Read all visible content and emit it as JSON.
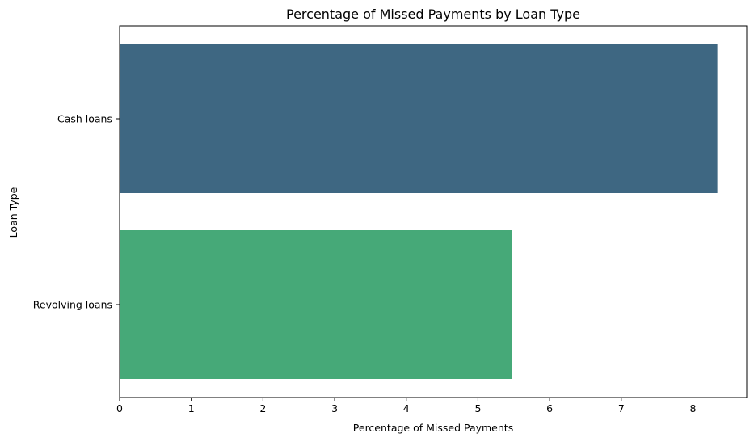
{
  "chart_data": {
    "type": "bar",
    "orientation": "horizontal",
    "title": "Percentage of Missed Payments by Loan Type",
    "xlabel": "Percentage of Missed Payments",
    "ylabel": "Loan Type",
    "categories": [
      "Cash loans",
      "Revolving loans"
    ],
    "values": [
      8.34,
      5.48
    ],
    "colors": [
      "#3e6782",
      "#46a978"
    ],
    "xlim": [
      0,
      8.75
    ],
    "xticks": [
      "0",
      "1",
      "2",
      "3",
      "4",
      "5",
      "6",
      "7",
      "8"
    ],
    "grid": false,
    "legend": "none"
  }
}
